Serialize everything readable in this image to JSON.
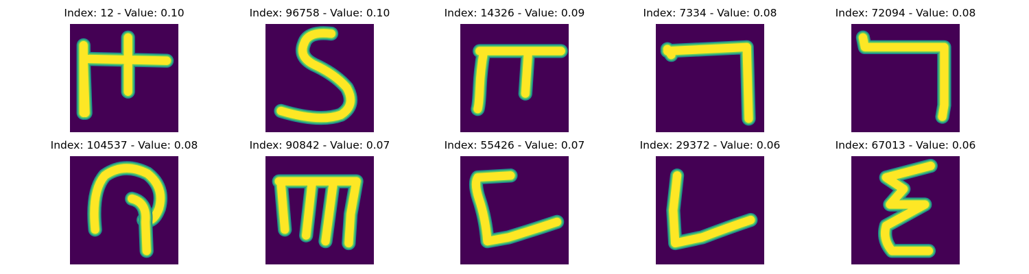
{
  "colors": {
    "background": "#440154",
    "edge": "#21918c",
    "mid": "#5ec962",
    "stroke": "#fde725"
  },
  "images": [
    {
      "title": "Index: 12 - Value: 0.10",
      "glyph": "hand-drawn-character-12"
    },
    {
      "title": "Index: 96758 - Value: 0.10",
      "glyph": "hand-drawn-s"
    },
    {
      "title": "Index: 14326 - Value: 0.09",
      "glyph": "hand-drawn-pi"
    },
    {
      "title": "Index: 7334 - Value: 0.08",
      "glyph": "hand-drawn-seven"
    },
    {
      "title": "Index: 72094 - Value: 0.08",
      "glyph": "hand-drawn-seven"
    },
    {
      "title": "Index: 104537 - Value: 0.08",
      "glyph": "hand-drawn-loop"
    },
    {
      "title": "Index: 90842 - Value: 0.07",
      "glyph": "hand-drawn-m"
    },
    {
      "title": "Index: 55426 - Value: 0.07",
      "glyph": "hand-drawn-c"
    },
    {
      "title": "Index: 29372 - Value: 0.06",
      "glyph": "hand-drawn-l"
    },
    {
      "title": "Index: 67013 - Value: 0.06",
      "glyph": "hand-drawn-zigzag"
    }
  ]
}
